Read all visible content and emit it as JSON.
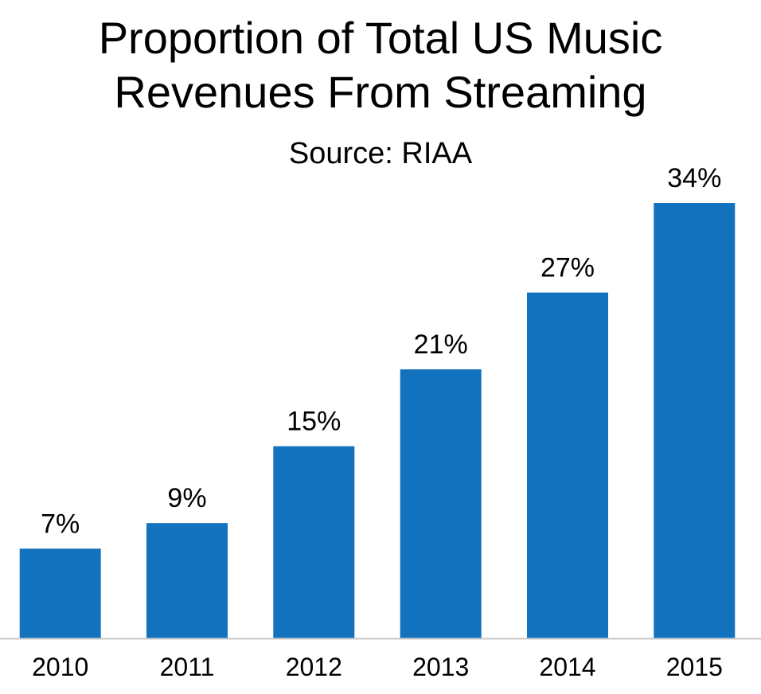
{
  "chart_data": {
    "type": "bar",
    "title_line1": "Proportion of Total US Music",
    "title_line2": "Revenues From Streaming",
    "subtitle": "Source: RIAA",
    "categories": [
      "2010",
      "2011",
      "2012",
      "2013",
      "2014",
      "2015"
    ],
    "values": [
      7,
      9,
      15,
      21,
      27,
      34
    ],
    "value_labels": [
      "7%",
      "9%",
      "15%",
      "21%",
      "27%",
      "34%"
    ],
    "unit": "%",
    "ylim": [
      0,
      34
    ],
    "grid": false,
    "legend": "none",
    "bar_color": "#1372BE",
    "axis_color": "#C8C8C8"
  }
}
